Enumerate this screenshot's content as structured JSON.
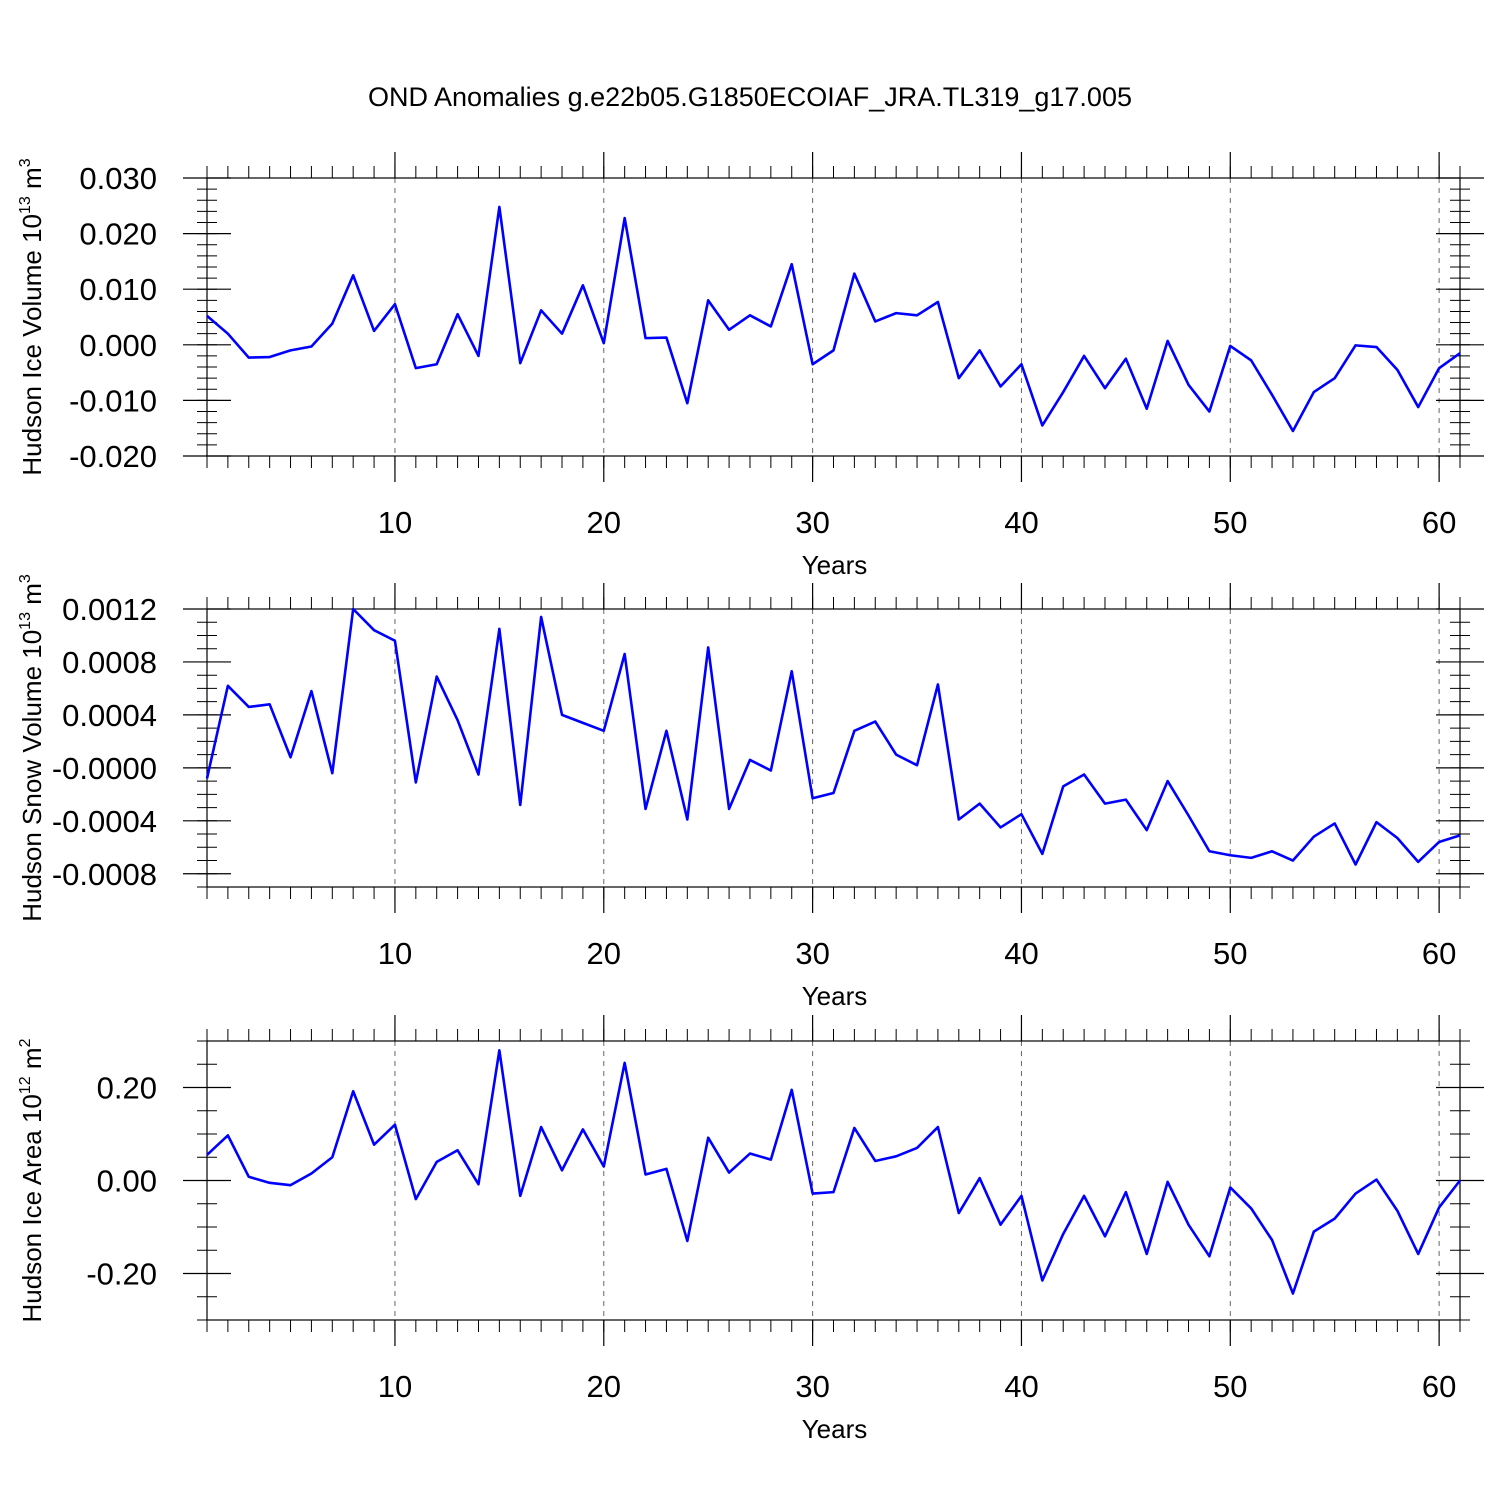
{
  "title": "OND Anomalies g.e22b05.G1850ECOIAF_JRA.TL319_g17.005",
  "line_color": "#0000ff",
  "chart_data": [
    {
      "type": "line",
      "ylabel": "Hudson Ice Volume 10",
      "ylabel_exp": "13",
      "ylabel_unit": " m",
      "ylabel_unit_exp": "3",
      "xlabel": "Years",
      "xlim": [
        1,
        61
      ],
      "ylim": [
        -0.02,
        0.03
      ],
      "xticks": [
        10,
        20,
        30,
        40,
        50,
        60
      ],
      "xtick_labels": [
        "10",
        "20",
        "30",
        "40",
        "50",
        "60"
      ],
      "yticks": [
        -0.02,
        -0.01,
        0.0,
        0.01,
        0.02,
        0.03
      ],
      "ytick_labels": [
        "-0.020",
        "-0.010",
        "0.000",
        "0.010",
        "0.020",
        "0.030"
      ],
      "x": [
        1,
        2,
        3,
        4,
        5,
        6,
        7,
        8,
        9,
        10,
        11,
        12,
        13,
        14,
        15,
        16,
        17,
        18,
        19,
        20,
        21,
        22,
        23,
        24,
        25,
        26,
        27,
        28,
        29,
        30,
        31,
        32,
        33,
        34,
        35,
        36,
        37,
        38,
        39,
        40,
        41,
        42,
        43,
        44,
        45,
        46,
        47,
        48,
        49,
        50,
        51,
        52,
        53,
        54,
        55,
        56,
        57,
        58,
        59,
        60,
        61
      ],
      "values": [
        0.0052,
        0.002,
        -0.0023,
        -0.0022,
        -0.001,
        -0.0003,
        0.0038,
        0.0125,
        0.0025,
        0.0073,
        -0.0042,
        -0.0035,
        0.0055,
        -0.002,
        0.0248,
        -0.0033,
        0.0062,
        0.002,
        0.0107,
        0.0003,
        0.0228,
        0.0012,
        0.0013,
        -0.0105,
        0.008,
        0.0027,
        0.0053,
        0.0033,
        0.0145,
        -0.0035,
        -0.001,
        0.0128,
        0.0042,
        0.0057,
        0.0053,
        0.0077,
        -0.006,
        -0.001,
        -0.0075,
        -0.0035,
        -0.0145,
        -0.0085,
        -0.002,
        -0.0078,
        -0.0025,
        -0.0115,
        0.0007,
        -0.0072,
        -0.012,
        -0.0002,
        -0.0028,
        -0.009,
        -0.0155,
        -0.0085,
        -0.006,
        -0.0001,
        -0.0004,
        -0.0045,
        -0.0112,
        -0.0042,
        -0.0015
      ]
    },
    {
      "type": "line",
      "ylabel": "Hudson Snow Volume 10",
      "ylabel_exp": "13",
      "ylabel_unit": " m",
      "ylabel_unit_exp": "3",
      "xlabel": "Years",
      "xlim": [
        1,
        61
      ],
      "ylim": [
        -0.0009,
        0.0012
      ],
      "xticks": [
        10,
        20,
        30,
        40,
        50,
        60
      ],
      "xtick_labels": [
        "10",
        "20",
        "30",
        "40",
        "50",
        "60"
      ],
      "yticks": [
        -0.0008,
        -0.0004,
        0.0,
        0.0004,
        0.0008,
        0.0012
      ],
      "ytick_labels": [
        "-0.0008",
        "-0.0004",
        "-0.0000",
        "0.0004",
        "0.0008",
        "0.0012"
      ],
      "x": [
        1,
        2,
        3,
        4,
        5,
        6,
        7,
        8,
        9,
        10,
        11,
        12,
        13,
        14,
        15,
        16,
        17,
        18,
        19,
        20,
        21,
        22,
        23,
        24,
        25,
        26,
        27,
        28,
        29,
        30,
        31,
        32,
        33,
        34,
        35,
        36,
        37,
        38,
        39,
        40,
        41,
        42,
        43,
        44,
        45,
        46,
        47,
        48,
        49,
        50,
        51,
        52,
        53,
        54,
        55,
        56,
        57,
        58,
        59,
        60,
        61
      ],
      "values": [
        -8e-05,
        0.00062,
        0.00046,
        0.00048,
        8e-05,
        0.00058,
        -4e-05,
        0.0012,
        0.00104,
        0.00096,
        -0.00011,
        0.00069,
        0.00036,
        -5e-05,
        0.00105,
        -0.00028,
        0.00114,
        0.0004,
        0.00034,
        0.00028,
        0.00086,
        -0.00031,
        0.00028,
        -0.00039,
        0.00091,
        -0.00031,
        6e-05,
        -2e-05,
        0.00073,
        -0.00023,
        -0.00019,
        0.00028,
        0.00035,
        0.0001,
        2e-05,
        0.00063,
        -0.00039,
        -0.00027,
        -0.00045,
        -0.00035,
        -0.00065,
        -0.00014,
        -5e-05,
        -0.00027,
        -0.00024,
        -0.00047,
        -0.0001,
        -0.00036,
        -0.00063,
        -0.00066,
        -0.00068,
        -0.00063,
        -0.0007,
        -0.00052,
        -0.00042,
        -0.00073,
        -0.00041,
        -0.00053,
        -0.00071,
        -0.00056,
        -0.00051
      ]
    },
    {
      "type": "line",
      "ylabel": "Hudson Ice Area 10",
      "ylabel_exp": "12",
      "ylabel_unit": " m",
      "ylabel_unit_exp": "2",
      "xlabel": "Years",
      "xlim": [
        1,
        61
      ],
      "ylim": [
        -0.3,
        0.3
      ],
      "xticks": [
        10,
        20,
        30,
        40,
        50,
        60
      ],
      "xtick_labels": [
        "10",
        "20",
        "30",
        "40",
        "50",
        "60"
      ],
      "yticks": [
        -0.2,
        0.0,
        0.2
      ],
      "ytick_labels": [
        "-0.20",
        "0.00",
        "0.20"
      ],
      "x": [
        1,
        2,
        3,
        4,
        5,
        6,
        7,
        8,
        9,
        10,
        11,
        12,
        13,
        14,
        15,
        16,
        17,
        18,
        19,
        20,
        21,
        22,
        23,
        24,
        25,
        26,
        27,
        28,
        29,
        30,
        31,
        32,
        33,
        34,
        35,
        36,
        37,
        38,
        39,
        40,
        41,
        42,
        43,
        44,
        45,
        46,
        47,
        48,
        49,
        50,
        51,
        52,
        53,
        54,
        55,
        56,
        57,
        58,
        59,
        60,
        61
      ],
      "values": [
        0.055,
        0.097,
        0.008,
        -0.005,
        -0.01,
        0.015,
        0.05,
        0.192,
        0.077,
        0.12,
        -0.04,
        0.04,
        0.065,
        -0.008,
        0.28,
        -0.033,
        0.115,
        0.022,
        0.11,
        0.03,
        0.253,
        0.013,
        0.025,
        -0.13,
        0.092,
        0.017,
        0.058,
        0.045,
        0.195,
        -0.028,
        -0.025,
        0.113,
        0.042,
        0.052,
        0.07,
        0.115,
        -0.07,
        0.005,
        -0.095,
        -0.033,
        -0.215,
        -0.115,
        -0.033,
        -0.12,
        -0.025,
        -0.158,
        -0.003,
        -0.095,
        -0.163,
        -0.015,
        -0.06,
        -0.128,
        -0.243,
        -0.11,
        -0.082,
        -0.028,
        0.002,
        -0.065,
        -0.158,
        -0.058,
        0.0
      ]
    }
  ]
}
